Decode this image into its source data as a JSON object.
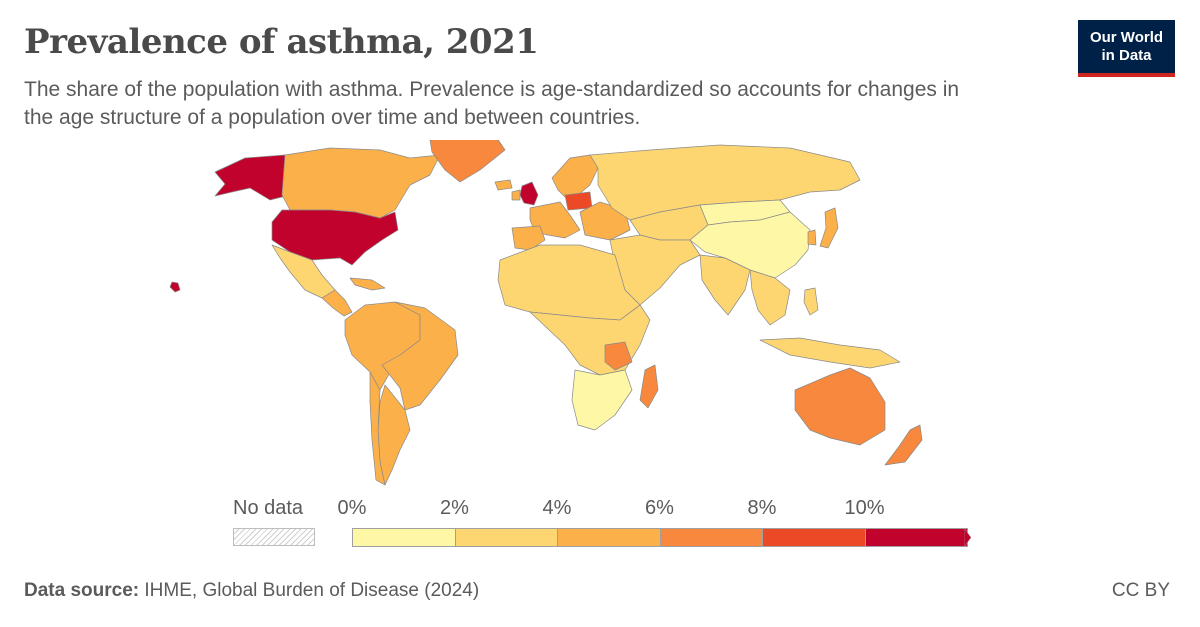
{
  "title": "Prevalence of asthma, 2021",
  "subtitle": "The share of the population with asthma. Prevalence is age-standardized so accounts for changes in the age structure of a population over time and between countries.",
  "logo": {
    "line1": "Our World",
    "line2": "in Data",
    "bg_color": "#002147",
    "accent_color": "#ce261e"
  },
  "legend": {
    "no_data_label": "No data",
    "ticks": [
      "0%",
      "2%",
      "4%",
      "6%",
      "8%",
      "10%"
    ],
    "bins": [
      {
        "from": 0,
        "to": 2,
        "color": "#fef7a6"
      },
      {
        "from": 2,
        "to": 4,
        "color": "#fdd672"
      },
      {
        "from": 4,
        "to": 6,
        "color": "#fbb04a"
      },
      {
        "from": 6,
        "to": 8,
        "color": "#f7883d"
      },
      {
        "from": 8,
        "to": 10,
        "color": "#ec4a27"
      },
      {
        "from": 10,
        "to": null,
        "color": "#c0022d"
      }
    ]
  },
  "regions": [
    {
      "name": "United States",
      "value_bin": 5
    },
    {
      "name": "Alaska",
      "value_bin": 5
    },
    {
      "name": "Canada",
      "value_bin": 2
    },
    {
      "name": "Greenland",
      "value_bin": 3
    },
    {
      "name": "Mexico",
      "value_bin": 1
    },
    {
      "name": "Central America",
      "value_bin": 2
    },
    {
      "name": "South America",
      "value_bin": 2
    },
    {
      "name": "Brazil",
      "value_bin": 2
    },
    {
      "name": "Argentina",
      "value_bin": 2
    },
    {
      "name": "Chile",
      "value_bin": 2
    },
    {
      "name": "United Kingdom",
      "value_bin": 5
    },
    {
      "name": "Europe",
      "value_bin": 2
    },
    {
      "name": "Poland",
      "value_bin": 4
    },
    {
      "name": "Russia",
      "value_bin": 1
    },
    {
      "name": "China",
      "value_bin": 0
    },
    {
      "name": "Mongolia",
      "value_bin": 0
    },
    {
      "name": "Africa",
      "value_bin": 1
    },
    {
      "name": "Tanzania",
      "value_bin": 3
    },
    {
      "name": "Madagascar",
      "value_bin": 3
    },
    {
      "name": "Southern Africa",
      "value_bin": 0
    },
    {
      "name": "Middle East",
      "value_bin": 1
    },
    {
      "name": "India",
      "value_bin": 1
    },
    {
      "name": "Southeast Asia",
      "value_bin": 1
    },
    {
      "name": "Japan",
      "value_bin": 2
    },
    {
      "name": "Australia",
      "value_bin": 3
    },
    {
      "name": "New Zealand",
      "value_bin": 3
    }
  ],
  "footer": {
    "source_label": "Data source:",
    "source_text": "IHME, Global Burden of Disease (2024)",
    "license": "CC BY"
  }
}
